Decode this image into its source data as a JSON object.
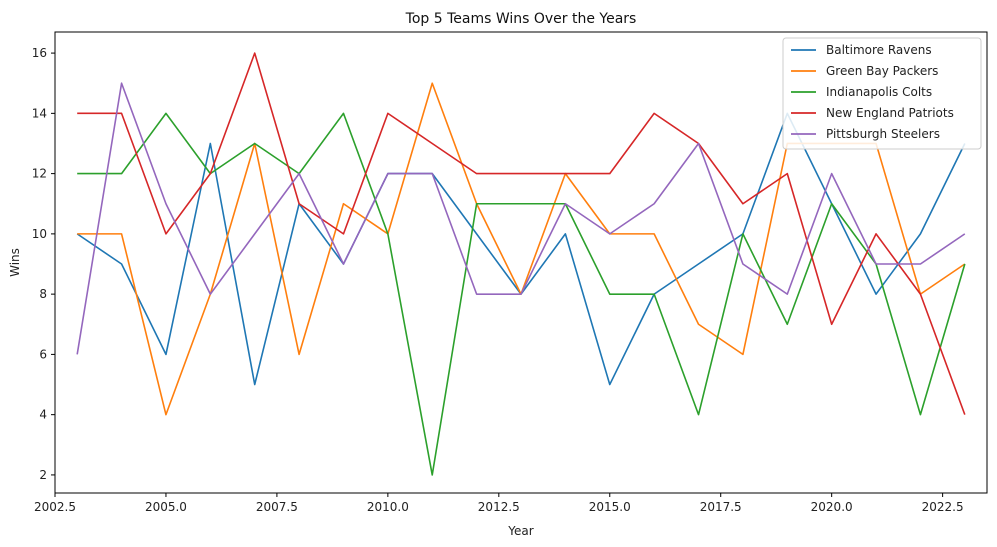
{
  "chart_data": {
    "type": "line",
    "title": "Top 5 Teams Wins Over the Years",
    "xlabel": "Year",
    "ylabel": "Wins",
    "xlim": [
      2002.5,
      2023.5
    ],
    "ylim": [
      1.4,
      16.7
    ],
    "xticks": [
      2002.5,
      2005.0,
      2007.5,
      2010.0,
      2012.5,
      2015.0,
      2017.5,
      2020.0,
      2022.5
    ],
    "xtick_labels": [
      "2002.5",
      "2005.0",
      "2007.5",
      "2010.0",
      "2012.5",
      "2015.0",
      "2017.5",
      "2020.0",
      "2022.5"
    ],
    "yticks": [
      2,
      4,
      6,
      8,
      10,
      12,
      14,
      16
    ],
    "ytick_labels": [
      "2",
      "4",
      "6",
      "8",
      "10",
      "12",
      "14",
      "16"
    ],
    "grid": false,
    "legend_position": "top-right",
    "x": [
      2003,
      2004,
      2005,
      2006,
      2007,
      2008,
      2009,
      2010,
      2011,
      2012,
      2013,
      2014,
      2015,
      2016,
      2017,
      2018,
      2019,
      2020,
      2021,
      2022,
      2023
    ],
    "series": [
      {
        "name": "Baltimore Ravens",
        "color": "#1f77b4",
        "values": [
          10,
          9,
          6,
          13,
          5,
          11,
          9,
          12,
          12,
          10,
          8,
          10,
          5,
          8,
          9,
          10,
          14,
          11,
          8,
          10,
          13
        ]
      },
      {
        "name": "Green Bay Packers",
        "color": "#ff7f0e",
        "values": [
          10,
          10,
          4,
          8,
          13,
          6,
          11,
          10,
          15,
          11,
          8,
          12,
          10,
          10,
          7,
          6,
          13,
          13,
          13,
          8,
          9
        ]
      },
      {
        "name": "Indianapolis Colts",
        "color": "#2ca02c",
        "values": [
          12,
          12,
          14,
          12,
          13,
          12,
          14,
          10,
          2,
          11,
          11,
          11,
          8,
          8,
          4,
          10,
          7,
          11,
          9,
          4,
          9
        ]
      },
      {
        "name": "New England Patriots",
        "color": "#d62728",
        "values": [
          14,
          14,
          10,
          12,
          16,
          11,
          10,
          14,
          13,
          12,
          12,
          12,
          12,
          14,
          13,
          11,
          12,
          7,
          10,
          8,
          4
        ]
      },
      {
        "name": "Pittsburgh Steelers",
        "color": "#9467bd",
        "values": [
          6,
          15,
          11,
          8,
          10,
          12,
          9,
          12,
          12,
          8,
          8,
          11,
          10,
          11,
          13,
          9,
          8,
          12,
          9,
          9,
          10
        ]
      }
    ]
  }
}
